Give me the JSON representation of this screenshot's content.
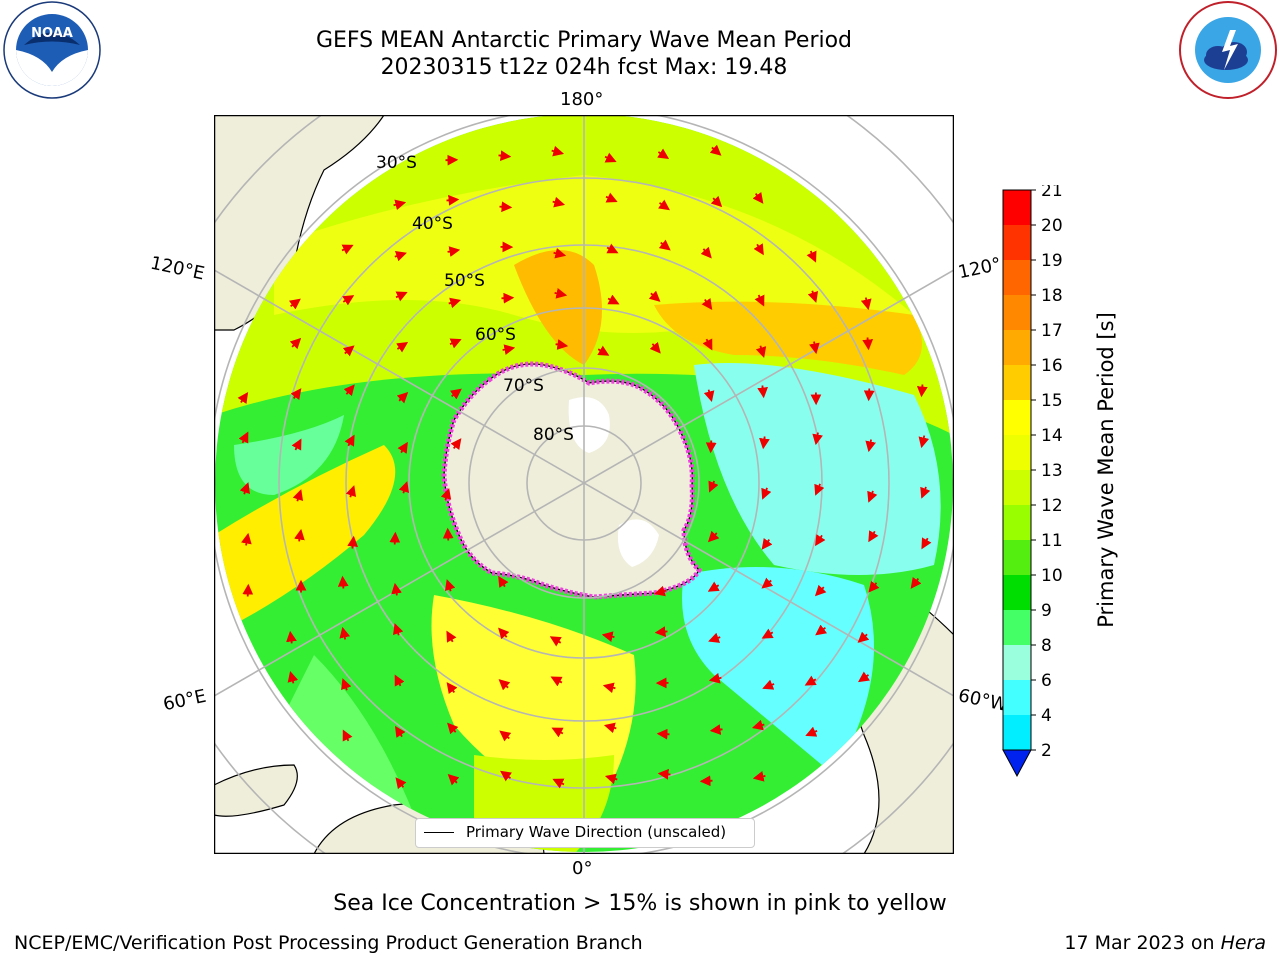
{
  "header": {
    "title_line1": "GEFS MEAN Antarctic Primary Wave Mean Period",
    "title_line2": "20230315 t12z 024h fcst   Max: 19.48"
  },
  "logos": {
    "left": "noaa-logo",
    "right": "national-weather-service-logo"
  },
  "map": {
    "projection": "south-polar-stereographic",
    "lon_labels": {
      "top": "180°",
      "bottom": "0°",
      "left_upper": "120°E",
      "left_lower": "60°E",
      "right_upper": "120°",
      "right_lower": "60°W"
    },
    "lat_labels": [
      "30°S",
      "40°S",
      "50°S",
      "60°S",
      "70°S",
      "80°S"
    ],
    "legend_text": "Primary Wave Direction (unscaled)"
  },
  "colorbar": {
    "label": "Primary Wave Mean Period [s]",
    "ticks": [
      "21",
      "20",
      "19",
      "18",
      "17",
      "16",
      "15",
      "14",
      "13",
      "12",
      "11",
      "10",
      "9",
      "8",
      "6",
      "4",
      "2"
    ],
    "colors": [
      "#ff0000",
      "#ff3300",
      "#ff6600",
      "#ff8800",
      "#ffaa00",
      "#ffcc00",
      "#ffff00",
      "#eeff00",
      "#ccff00",
      "#99ff00",
      "#55ee11",
      "#00dd00",
      "#44ff66",
      "#99ffdd",
      "#44ffff",
      "#00eeff",
      "#00aaff",
      "#0066ff"
    ],
    "under_color": "#0022ee"
  },
  "note": "Sea Ice Concentration > 15% is shown in pink to yellow",
  "footer": {
    "left": "NCEP/EMC/Verification Post Processing Product Generation Branch",
    "right_prefix": "17 Mar 2023 on ",
    "right_host": "Hera"
  }
}
